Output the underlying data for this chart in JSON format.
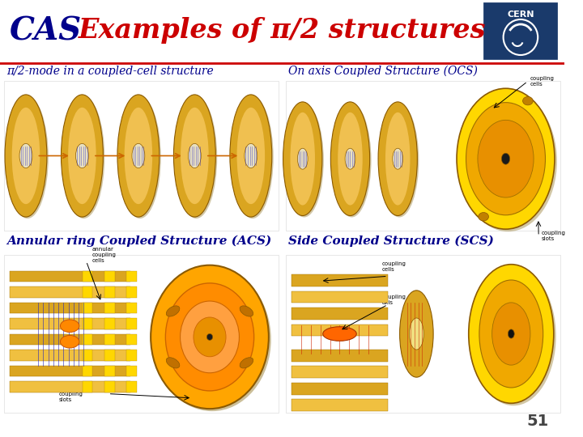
{
  "title": "Examples of π/2 structures",
  "cas_text": "CAS",
  "cas_color": "#00008B",
  "title_color": "#CC0000",
  "bg_color": "#FFFFFF",
  "divider_color": "#CC0000",
  "label_color": "#00008B",
  "label1": "π/2-mode in a coupled-cell structure",
  "label2": "On axis Coupled Structure (OCS)",
  "label3": "Annular ring Coupled Structure (ACS)",
  "label4": "Side Coupled Structure (SCS)",
  "page_number": "51",
  "cern_box_color": "#1a3a6b",
  "note2_line1": "coupling",
  "note2_line2": "cells",
  "note2_line3": "coupling",
  "note2_line4": "slots",
  "note3_line1": "annular",
  "note3_line2": "coupling",
  "note3_line3": "cells",
  "note3_line4": "coupling",
  "note3_line5": "slots"
}
